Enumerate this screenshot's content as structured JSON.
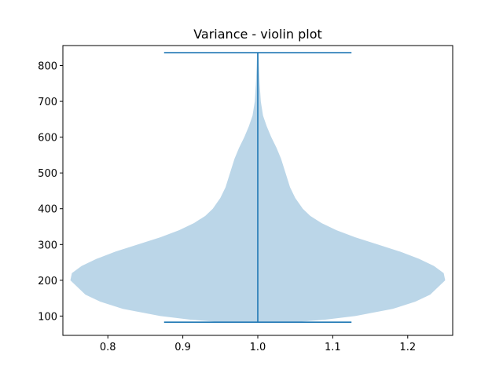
{
  "chart_data": {
    "type": "violin",
    "title": "Variance - violin plot",
    "xlabel": "",
    "ylabel": "",
    "xlim": [
      0.74,
      1.26
    ],
    "ylim": [
      46,
      856
    ],
    "x_ticks": [
      0.8,
      0.9,
      1.0,
      1.1,
      1.2
    ],
    "x_tick_labels": [
      "0.8",
      "0.9",
      "1.0",
      "1.1",
      "1.2"
    ],
    "y_ticks": [
      100,
      200,
      300,
      400,
      500,
      600,
      700,
      800
    ],
    "y_tick_labels": [
      "100",
      "200",
      "300",
      "400",
      "500",
      "600",
      "700",
      "800"
    ],
    "grid": false,
    "violins": [
      {
        "position": 1.0,
        "min": 83,
        "max": 836,
        "widths": 0.5,
        "density": [
          {
            "y": 83,
            "half_width": 0.05
          },
          {
            "y": 90,
            "half_width": 0.09
          },
          {
            "y": 100,
            "half_width": 0.13
          },
          {
            "y": 120,
            "half_width": 0.18
          },
          {
            "y": 140,
            "half_width": 0.21
          },
          {
            "y": 160,
            "half_width": 0.23
          },
          {
            "y": 180,
            "half_width": 0.24
          },
          {
            "y": 200,
            "half_width": 0.25
          },
          {
            "y": 220,
            "half_width": 0.248
          },
          {
            "y": 240,
            "half_width": 0.235
          },
          {
            "y": 260,
            "half_width": 0.215
          },
          {
            "y": 280,
            "half_width": 0.19
          },
          {
            "y": 300,
            "half_width": 0.16
          },
          {
            "y": 320,
            "half_width": 0.13
          },
          {
            "y": 340,
            "half_width": 0.105
          },
          {
            "y": 360,
            "half_width": 0.085
          },
          {
            "y": 380,
            "half_width": 0.07
          },
          {
            "y": 400,
            "half_width": 0.06
          },
          {
            "y": 430,
            "half_width": 0.05
          },
          {
            "y": 460,
            "half_width": 0.043
          },
          {
            "y": 500,
            "half_width": 0.037
          },
          {
            "y": 540,
            "half_width": 0.031
          },
          {
            "y": 570,
            "half_width": 0.025
          },
          {
            "y": 600,
            "half_width": 0.018
          },
          {
            "y": 630,
            "half_width": 0.012
          },
          {
            "y": 660,
            "half_width": 0.007
          },
          {
            "y": 700,
            "half_width": 0.004
          },
          {
            "y": 750,
            "half_width": 0.0025
          },
          {
            "y": 800,
            "half_width": 0.0015
          },
          {
            "y": 836,
            "half_width": 0.001
          }
        ]
      }
    ],
    "colors": {
      "body_fill": "#1f77b4",
      "body_alpha": 0.3,
      "line": "#1f77b4",
      "axis": "#000000"
    }
  }
}
